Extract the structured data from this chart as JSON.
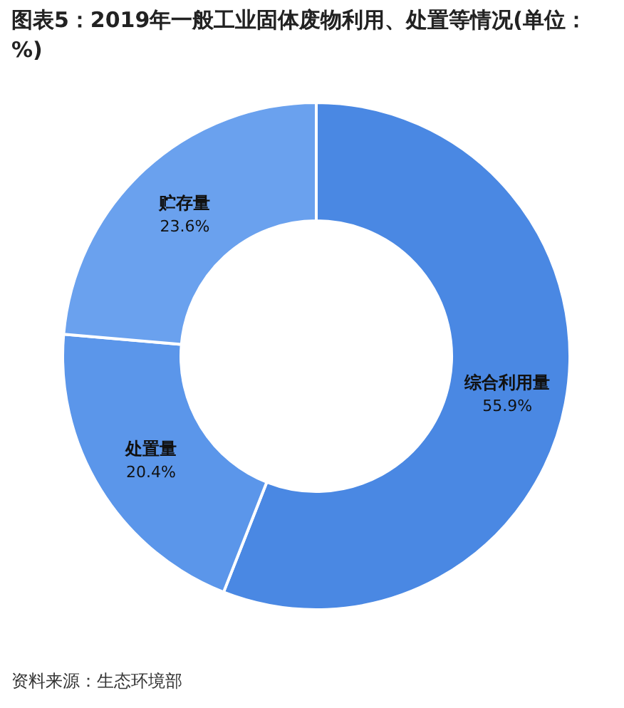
{
  "chart_data": {
    "type": "donut",
    "title": "图表5：2019年一般工业固体废物利用、处置等情况(单位：%)",
    "categories": [
      "综合利用量",
      "处置量",
      "贮存量"
    ],
    "values": [
      55.9,
      20.4,
      23.6
    ],
    "colors": [
      "#4a88e3",
      "#5b96ea",
      "#6aa1ee"
    ],
    "value_labels": [
      "55.9%",
      "20.4%",
      "23.6%"
    ],
    "annotations": [
      "资料来源：生态环境部"
    ]
  }
}
